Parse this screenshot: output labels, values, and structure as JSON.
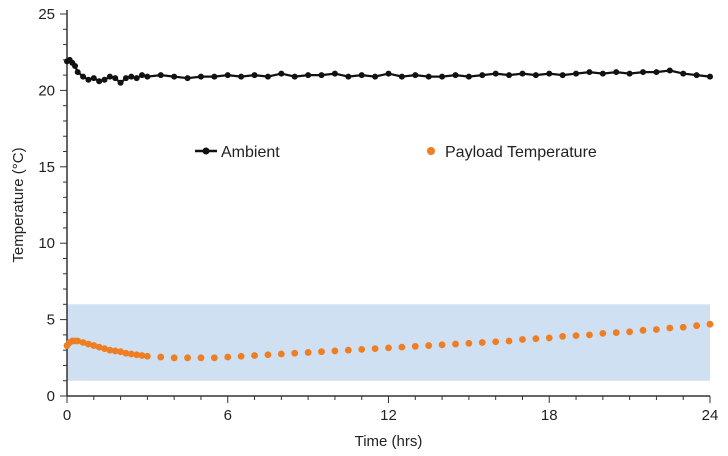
{
  "chart_data": {
    "type": "scatter",
    "xlabel": "Time (hrs)",
    "ylabel": "Temperature (°C)",
    "xlim": [
      0,
      24
    ],
    "ylim": [
      0,
      25
    ],
    "x_ticks": [
      "0",
      "6",
      "12",
      "18",
      "24"
    ],
    "y_ticks": [
      "0",
      "5",
      "10",
      "15",
      "20",
      "25"
    ],
    "grid": false,
    "legend_placement": "upper-middle",
    "band": {
      "y_from": 1,
      "y_to": 6,
      "color": "#cfe0f3"
    },
    "series": [
      {
        "name": "Ambient",
        "marker": "line-with-dots",
        "color": "#111111",
        "x": [
          0,
          0.1,
          0.2,
          0.3,
          0.4,
          0.6,
          0.8,
          1.0,
          1.2,
          1.4,
          1.6,
          1.8,
          2.0,
          2.2,
          2.4,
          2.6,
          2.8,
          3.0,
          3.5,
          4.0,
          4.5,
          5.0,
          5.5,
          6.0,
          6.5,
          7.0,
          7.5,
          8.0,
          8.5,
          9.0,
          9.5,
          10.0,
          10.5,
          11.0,
          11.5,
          12.0,
          12.5,
          13.0,
          13.5,
          14.0,
          14.5,
          15.0,
          15.5,
          16.0,
          16.5,
          17.0,
          17.5,
          18.0,
          18.5,
          19.0,
          19.5,
          20.0,
          20.5,
          21.0,
          21.5,
          22.0,
          22.5,
          23.0,
          23.5,
          24.0
        ],
        "y": [
          21.9,
          22.0,
          21.8,
          21.6,
          21.2,
          20.9,
          20.7,
          20.8,
          20.6,
          20.7,
          20.9,
          20.8,
          20.5,
          20.8,
          20.9,
          20.8,
          21.0,
          20.9,
          21.0,
          20.9,
          20.8,
          20.9,
          20.9,
          21.0,
          20.9,
          21.0,
          20.9,
          21.1,
          20.9,
          21.0,
          21.0,
          21.1,
          20.9,
          21.0,
          20.9,
          21.1,
          20.9,
          21.0,
          20.9,
          20.9,
          21.0,
          20.9,
          21.0,
          21.1,
          21.0,
          21.1,
          21.0,
          21.1,
          21.0,
          21.1,
          21.2,
          21.1,
          21.2,
          21.1,
          21.2,
          21.2,
          21.3,
          21.1,
          21.0,
          20.9
        ]
      },
      {
        "name": "Payload Temperature",
        "marker": "dots",
        "color": "#ef7d22",
        "x": [
          0,
          0.1,
          0.2,
          0.3,
          0.4,
          0.6,
          0.8,
          1.0,
          1.2,
          1.4,
          1.6,
          1.8,
          2.0,
          2.2,
          2.4,
          2.6,
          2.8,
          3.0,
          3.5,
          4.0,
          4.5,
          5.0,
          5.5,
          6.0,
          6.5,
          7.0,
          7.5,
          8.0,
          8.5,
          9.0,
          9.5,
          10.0,
          10.5,
          11.0,
          11.5,
          12.0,
          12.5,
          13.0,
          13.5,
          14.0,
          14.5,
          15.0,
          15.5,
          16.0,
          16.5,
          17.0,
          17.5,
          18.0,
          18.5,
          19.0,
          19.5,
          20.0,
          20.5,
          21.0,
          21.5,
          22.0,
          22.5,
          23.0,
          23.5,
          24.0
        ],
        "y": [
          3.3,
          3.5,
          3.6,
          3.6,
          3.6,
          3.5,
          3.4,
          3.3,
          3.2,
          3.1,
          3.0,
          2.95,
          2.9,
          2.8,
          2.75,
          2.7,
          2.65,
          2.6,
          2.55,
          2.5,
          2.5,
          2.5,
          2.5,
          2.55,
          2.6,
          2.65,
          2.7,
          2.75,
          2.8,
          2.85,
          2.9,
          2.95,
          3.0,
          3.05,
          3.1,
          3.15,
          3.2,
          3.25,
          3.3,
          3.35,
          3.4,
          3.45,
          3.5,
          3.55,
          3.6,
          3.7,
          3.75,
          3.8,
          3.9,
          3.95,
          4.0,
          4.1,
          4.15,
          4.2,
          4.3,
          4.35,
          4.45,
          4.5,
          4.6,
          4.7
        ]
      }
    ]
  }
}
